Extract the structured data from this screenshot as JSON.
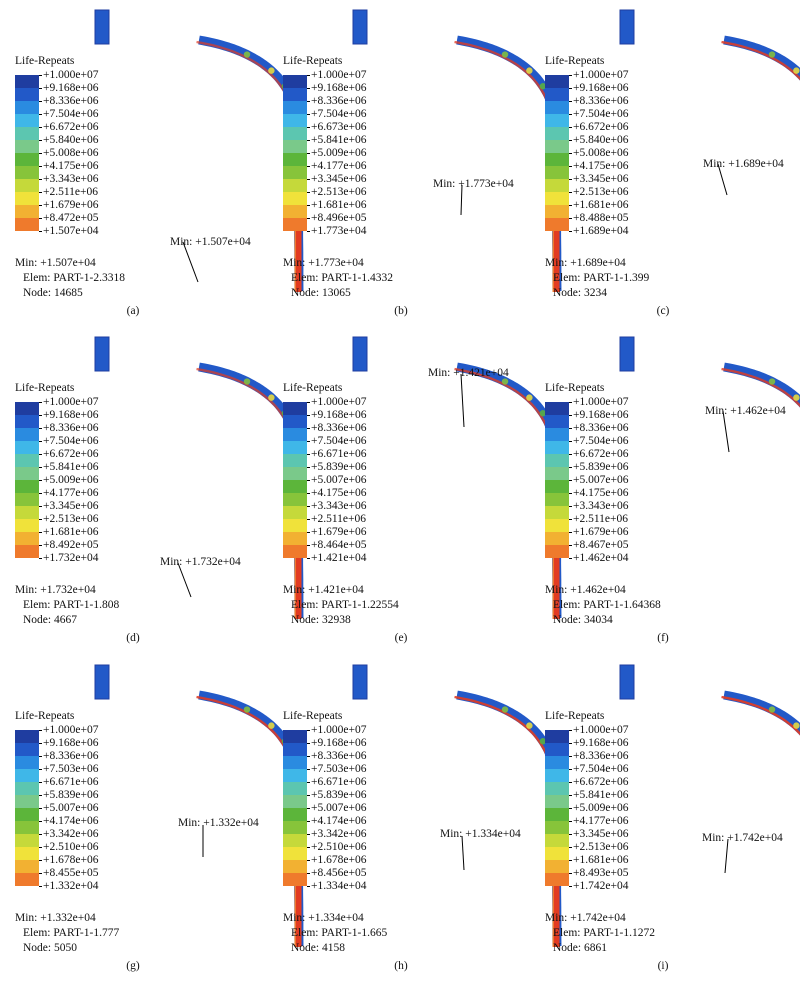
{
  "colors": [
    "#1f3da0",
    "#2259c8",
    "#2a8be0",
    "#3fb7e8",
    "#5cc6b0",
    "#7ac98a",
    "#5cb53a",
    "#87c43a",
    "#c5d93a",
    "#f0e23a",
    "#f2b132",
    "#ef7a2c",
    "#e23b22"
  ],
  "panels": [
    {
      "id": "a",
      "legend_title": "Life-Repeats",
      "values": [
        "+1.000e+07",
        "+9.168e+06",
        "+8.336e+06",
        "+7.504e+06",
        "+6.672e+06",
        "+5.840e+06",
        "+5.008e+06",
        "+4.175e+06",
        "+3.343e+06",
        "+2.511e+06",
        "+1.679e+06",
        "+8.472e+05",
        "+1.507e+04"
      ],
      "min": "Min: +1.507e+04",
      "elem": "Elem: PART-1-2.3318",
      "node": "Node: 14685",
      "caption": "(a)",
      "min_label": "Min: +1.507e+04"
    },
    {
      "id": "b",
      "legend_title": "Life-Repeats",
      "values": [
        "+1.000e+07",
        "+9.168e+06",
        "+8.336e+06",
        "+7.504e+06",
        "+6.673e+06",
        "+5.841e+06",
        "+5.009e+06",
        "+4.177e+06",
        "+3.345e+06",
        "+2.513e+06",
        "+1.681e+06",
        "+8.496e+05",
        "+1.773e+04"
      ],
      "min": "Min: +1.773e+04",
      "elem": "Elem: PART-1-1.4332",
      "node": "Node: 13065",
      "caption": "(b)",
      "min_label": "Min: +1.773e+04"
    },
    {
      "id": "c",
      "legend_title": "Life-Repeats",
      "values": [
        "+1.000e+07",
        "+9.168e+06",
        "+8.336e+06",
        "+7.504e+06",
        "+6.672e+06",
        "+5.840e+06",
        "+5.008e+06",
        "+4.175e+06",
        "+3.345e+06",
        "+2.513e+06",
        "+1.681e+06",
        "+8.488e+05",
        "+1.689e+04"
      ],
      "min": "Min: +1.689e+04",
      "elem": "Elem: PART-1-1.399",
      "node": "Node: 3234",
      "caption": "(c)",
      "min_label": "Min: +1.689e+04"
    },
    {
      "id": "d",
      "legend_title": "Life-Repeats",
      "values": [
        "+1.000e+07",
        "+9.168e+06",
        "+8.336e+06",
        "+7.504e+06",
        "+6.672e+06",
        "+5.841e+06",
        "+5.009e+06",
        "+4.177e+06",
        "+3.345e+06",
        "+2.513e+06",
        "+1.681e+06",
        "+8.492e+05",
        "+1.732e+04"
      ],
      "min": "Min: +1.732e+04",
      "elem": "Elem: PART-1-1.808",
      "node": "Node: 4667",
      "caption": "(d)",
      "min_label": "Min: +1.732e+04"
    },
    {
      "id": "e",
      "legend_title": "Life-Repeats",
      "values": [
        "+1.000e+07",
        "+9.168e+06",
        "+8.336e+06",
        "+7.504e+06",
        "+6.671e+06",
        "+5.839e+06",
        "+5.007e+06",
        "+4.175e+06",
        "+3.343e+06",
        "+2.511e+06",
        "+1.679e+06",
        "+8.464e+05",
        "+1.421e+04"
      ],
      "min": "Min: +1.421e+04",
      "elem": "Elem: PART-1-1.22554",
      "node": "Node: 32938",
      "caption": "(e)",
      "min_label": "Min: +1.421e+04"
    },
    {
      "id": "f",
      "legend_title": "Life-Repeats",
      "values": [
        "+1.000e+07",
        "+9.168e+06",
        "+8.336e+06",
        "+7.504e+06",
        "+6.672e+06",
        "+5.839e+06",
        "+5.007e+06",
        "+4.175e+06",
        "+3.343e+06",
        "+2.511e+06",
        "+1.679e+06",
        "+8.467e+05",
        "+1.462e+04"
      ],
      "min": "Min: +1.462e+04",
      "elem": "Elem: PART-1-1.64368",
      "node": "Node: 34034",
      "caption": "(f)",
      "min_label": "Min: +1.462e+04"
    },
    {
      "id": "g",
      "legend_title": "Life-Repeats",
      "values": [
        "+1.000e+07",
        "+9.168e+06",
        "+8.336e+06",
        "+7.503e+06",
        "+6.671e+06",
        "+5.839e+06",
        "+5.007e+06",
        "+4.174e+06",
        "+3.342e+06",
        "+2.510e+06",
        "+1.678e+06",
        "+8.455e+05",
        "+1.332e+04"
      ],
      "min": "Min: +1.332e+04",
      "elem": "Elem: PART-1-1.777",
      "node": "Node: 5050",
      "caption": "(g)",
      "min_label": "Min: +1.332e+04"
    },
    {
      "id": "h",
      "legend_title": "Life-Repeats",
      "values": [
        "+1.000e+07",
        "+9.168e+06",
        "+8.336e+06",
        "+7.503e+06",
        "+6.671e+06",
        "+5.839e+06",
        "+5.007e+06",
        "+4.174e+06",
        "+3.342e+06",
        "+2.510e+06",
        "+1.678e+06",
        "+8.456e+05",
        "+1.334e+04"
      ],
      "min": "Min: +1.334e+04",
      "elem": "Elem: PART-1-1.665",
      "node": "Node: 4158",
      "caption": "(h)",
      "min_label": "Min: +1.334e+04"
    },
    {
      "id": "i",
      "legend_title": "Life-Repeats",
      "values": [
        "+1.000e+07",
        "+9.168e+06",
        "+8.336e+06",
        "+7.504e+06",
        "+6.672e+06",
        "+5.841e+06",
        "+5.009e+06",
        "+4.177e+06",
        "+3.345e+06",
        "+2.513e+06",
        "+1.681e+06",
        "+8.493e+05",
        "+1.742e+04"
      ],
      "min": "Min: +1.742e+04",
      "elem": "Elem: PART-1-1.1272",
      "node": "Node: 6861",
      "caption": "(i)",
      "min_label": "Min: +1.742e+04"
    }
  ]
}
